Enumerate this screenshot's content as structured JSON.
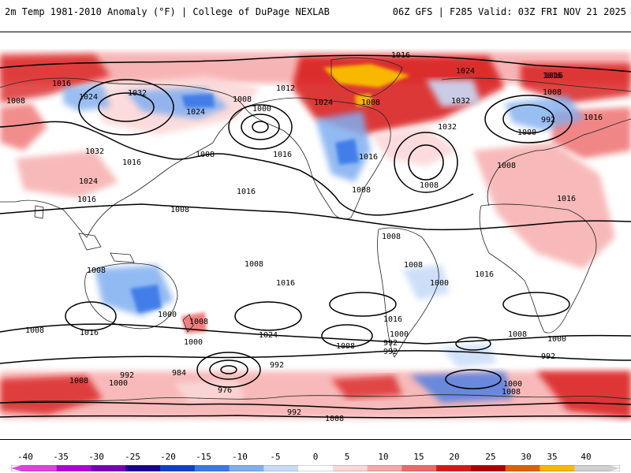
{
  "header": {
    "title_left": "2m Temp 1981-2010 Anomaly (°F) | College of DuPage NEXLAB",
    "title_right": "06Z GFS | F285 Valid: 03Z FRI NOV 21 2025"
  },
  "colors": {
    "neg40": "#e040e0",
    "neg35": "#b400d8",
    "neg30": "#7a00b8",
    "neg25": "#1a0090",
    "neg20": "#1040c8",
    "neg15": "#3a78e8",
    "neg10": "#80aef0",
    "neg5": "#c8dcf8",
    "zero": "#ffffff",
    "pos5": "#fbd8d8",
    "pos10": "#f6a8a8",
    "pos15": "#ee6868",
    "pos20": "#d81818",
    "pos25": "#b00000",
    "pos30": "#e06000",
    "pos35": "#f8b800",
    "pos40": "#d0d0d0"
  },
  "colorbar": {
    "ticks": [
      "-40",
      "-35",
      "-30",
      "-25",
      "-20",
      "-15",
      "-10",
      "-5",
      "0",
      "5",
      "10",
      "15",
      "20",
      "25",
      "30",
      "35",
      "40"
    ]
  },
  "contour_labels": [
    "1016",
    "1016",
    "1024",
    "1008",
    "1032",
    "1016",
    "1024",
    "1016",
    "1032",
    "1024",
    "1016",
    "1008",
    "1000",
    "1008",
    "1016",
    "1016",
    "1012",
    "1024",
    "1008",
    "1016",
    "1008",
    "1032",
    "1024",
    "1032",
    "1016",
    "1008",
    "992",
    "1016",
    "1000",
    "1008",
    "1016",
    "1008",
    "1008",
    "1008",
    "1016",
    "1008",
    "1008",
    "1016",
    "1008",
    "1000",
    "1008",
    "1016",
    "1024",
    "1000",
    "1008",
    "992",
    "1000",
    "1016",
    "992",
    "1008",
    "1000",
    "992",
    "992",
    "1008",
    "1000",
    "984",
    "976",
    "992",
    "1008",
    "1000",
    "1000",
    "1008",
    "992",
    "1008"
  ]
}
